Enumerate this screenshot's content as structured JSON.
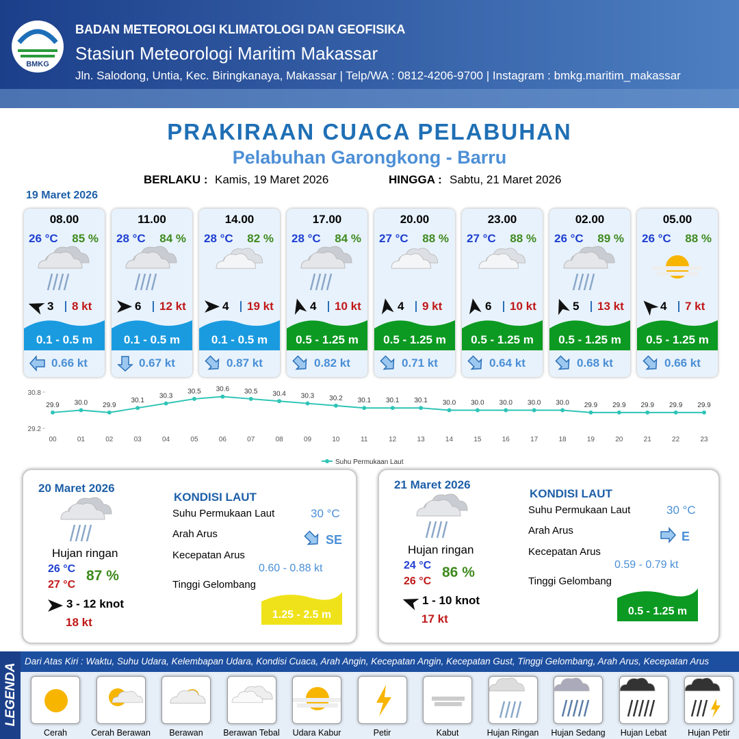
{
  "header": {
    "logo_text": "BMKG",
    "organization": "BADAN METEOROLOGI KLIMATOLOGI DAN GEOFISIKA",
    "station": "Stasiun Meteorologi Maritim Makassar",
    "address": "Jln. Salodong, Untia, Kec. Biringkanaya, Makassar | Telp/WA : 0812-4206-9700 | Instagram : bmkg.maritim_makassar"
  },
  "title": "PRAKIRAAN CUACA PELABUHAN",
  "subtitle": "Pelabuhan Garongkong - Barru",
  "valid_from_label": "BERLAKU :",
  "valid_from": "Kamis, 19 Maret 2026",
  "valid_until_label": "HINGGA :",
  "valid_until": "Sabtu, 21 Maret 2026",
  "day1_date": "19 Maret 2026",
  "forecasts": [
    {
      "time": "08.00",
      "temp": "26 °C",
      "humidity": "85 %",
      "wind": "3",
      "gust": "8 kt",
      "wave": "0.1 - 0.5 m",
      "wave_color": "#1a9be0",
      "current": "0.66 kt"
    },
    {
      "time": "11.00",
      "temp": "28 °C",
      "humidity": "84 %",
      "wind": "6",
      "gust": "12 kt",
      "wave": "0.1 - 0.5 m",
      "wave_color": "#1a9be0",
      "current": "0.67 kt"
    },
    {
      "time": "14.00",
      "temp": "28 °C",
      "humidity": "82 %",
      "wind": "4",
      "gust": "19 kt",
      "wave": "0.1 - 0.5 m",
      "wave_color": "#1a9be0",
      "current": "0.87 kt"
    },
    {
      "time": "17.00",
      "temp": "28 °C",
      "humidity": "84 %",
      "wind": "4",
      "gust": "10 kt",
      "wave": "0.5 - 1.25 m",
      "wave_color": "#0c9a22",
      "current": "0.82 kt"
    },
    {
      "time": "20.00",
      "temp": "27 °C",
      "humidity": "88 %",
      "wind": "4",
      "gust": "9 kt",
      "wave": "0.5 - 1.25 m",
      "wave_color": "#0c9a22",
      "current": "0.71 kt"
    },
    {
      "time": "23.00",
      "temp": "27 °C",
      "humidity": "88 %",
      "wind": "6",
      "gust": "10 kt",
      "wave": "0.5 - 1.25 m",
      "wave_color": "#0c9a22",
      "current": "0.64 kt"
    },
    {
      "time": "02.00",
      "temp": "26 °C",
      "humidity": "89 %",
      "wind": "5",
      "gust": "13 kt",
      "wave": "0.5 - 1.25 m",
      "wave_color": "#0c9a22",
      "current": "0.68 kt"
    },
    {
      "time": "05.00",
      "temp": "26 °C",
      "humidity": "88 %",
      "wind": "4",
      "gust": "7 kt",
      "wave": "0.5 - 1.25 m",
      "wave_color": "#0c9a22",
      "current": "0.66 kt"
    }
  ],
  "chart_data": {
    "type": "line",
    "series_name": "Suhu Permukaan Laut",
    "color": "#2ec4b6",
    "categories": [
      "00",
      "01",
      "02",
      "03",
      "04",
      "05",
      "06",
      "07",
      "08",
      "09",
      "10",
      "11",
      "12",
      "13",
      "14",
      "15",
      "16",
      "17",
      "18",
      "19",
      "20",
      "21",
      "22",
      "23"
    ],
    "values": [
      29.9,
      30.0,
      29.9,
      30.1,
      30.3,
      30.5,
      30.6,
      30.5,
      30.4,
      30.3,
      30.2,
      30.1,
      30.1,
      30.1,
      30.0,
      30.0,
      30.0,
      30.0,
      30.0,
      29.9,
      29.9,
      29.9,
      29.9,
      29.9
    ],
    "value_labels": [
      "29.9",
      "30.0",
      "29.9",
      "30.1",
      "30.3",
      "30.5",
      "30.6",
      "30.5",
      "30.4",
      "30.3",
      "30.2",
      "30.1",
      "30.1",
      "30.1",
      "30.0",
      "30.0",
      "30.0",
      "30.0",
      "30.0",
      "29.9",
      "29.9",
      "29.9",
      "29.9",
      "29.9"
    ],
    "ylim": [
      29.2,
      30.8
    ],
    "yticks": [
      29.2,
      30.8
    ]
  },
  "days": [
    {
      "date": "20 Maret 2026",
      "condition": "Hujan ringan",
      "temp_min": "26 °C",
      "temp_max": "27 °C",
      "humidity": "87 %",
      "wind": "3  - 12 knot",
      "gust": "18 kt",
      "sea_title": "KONDISI LAUT",
      "sst_label": "Suhu Permukaan Laut",
      "sst": "30 °C",
      "current_dir_label": "Arah Arus",
      "current_dir": "SE",
      "current_speed_label": "Kecepatan Arus",
      "current_speed": "0.60  - 0.88 kt",
      "wave_label": "Tinggi Gelombang",
      "wave": "1.25 - 2.5 m",
      "wave_color": "#f0e21a"
    },
    {
      "date": "21 Maret 2026",
      "condition": "Hujan ringan",
      "temp_min": "24 °C",
      "temp_max": "26 °C",
      "humidity": "86 %",
      "wind": "1  - 10 knot",
      "gust": "17 kt",
      "sea_title": "KONDISI LAUT",
      "sst_label": "Suhu Permukaan Laut",
      "sst": "30 °C",
      "current_dir_label": "Arah Arus",
      "current_dir": "E",
      "current_speed_label": "Kecepatan Arus",
      "current_speed": "0.59  - 0.79 kt",
      "wave_label": "Tinggi Gelombang",
      "wave": "0.5 - 1.25 m",
      "wave_color": "#0c9a22"
    }
  ],
  "legend": {
    "title": "LEGENDA",
    "description": "Dari Atas Kiri : Waktu, Suhu Udara, Kelembapan Udara, Kondisi Cuaca, Arah Angin, Kecepatan Angin, Kecepatan Gust, Tinggi Gelombang, Arah Arus, Kecepatan Arus",
    "items": [
      "Cerah",
      "Cerah Berawan",
      "Berawan",
      "Berawan Tebal",
      "Udara Kabur",
      "Petir",
      "Kabut",
      "Hujan Ringan",
      "Hujan Sedang",
      "Hujan Lebat",
      "Hujan Petir"
    ]
  }
}
